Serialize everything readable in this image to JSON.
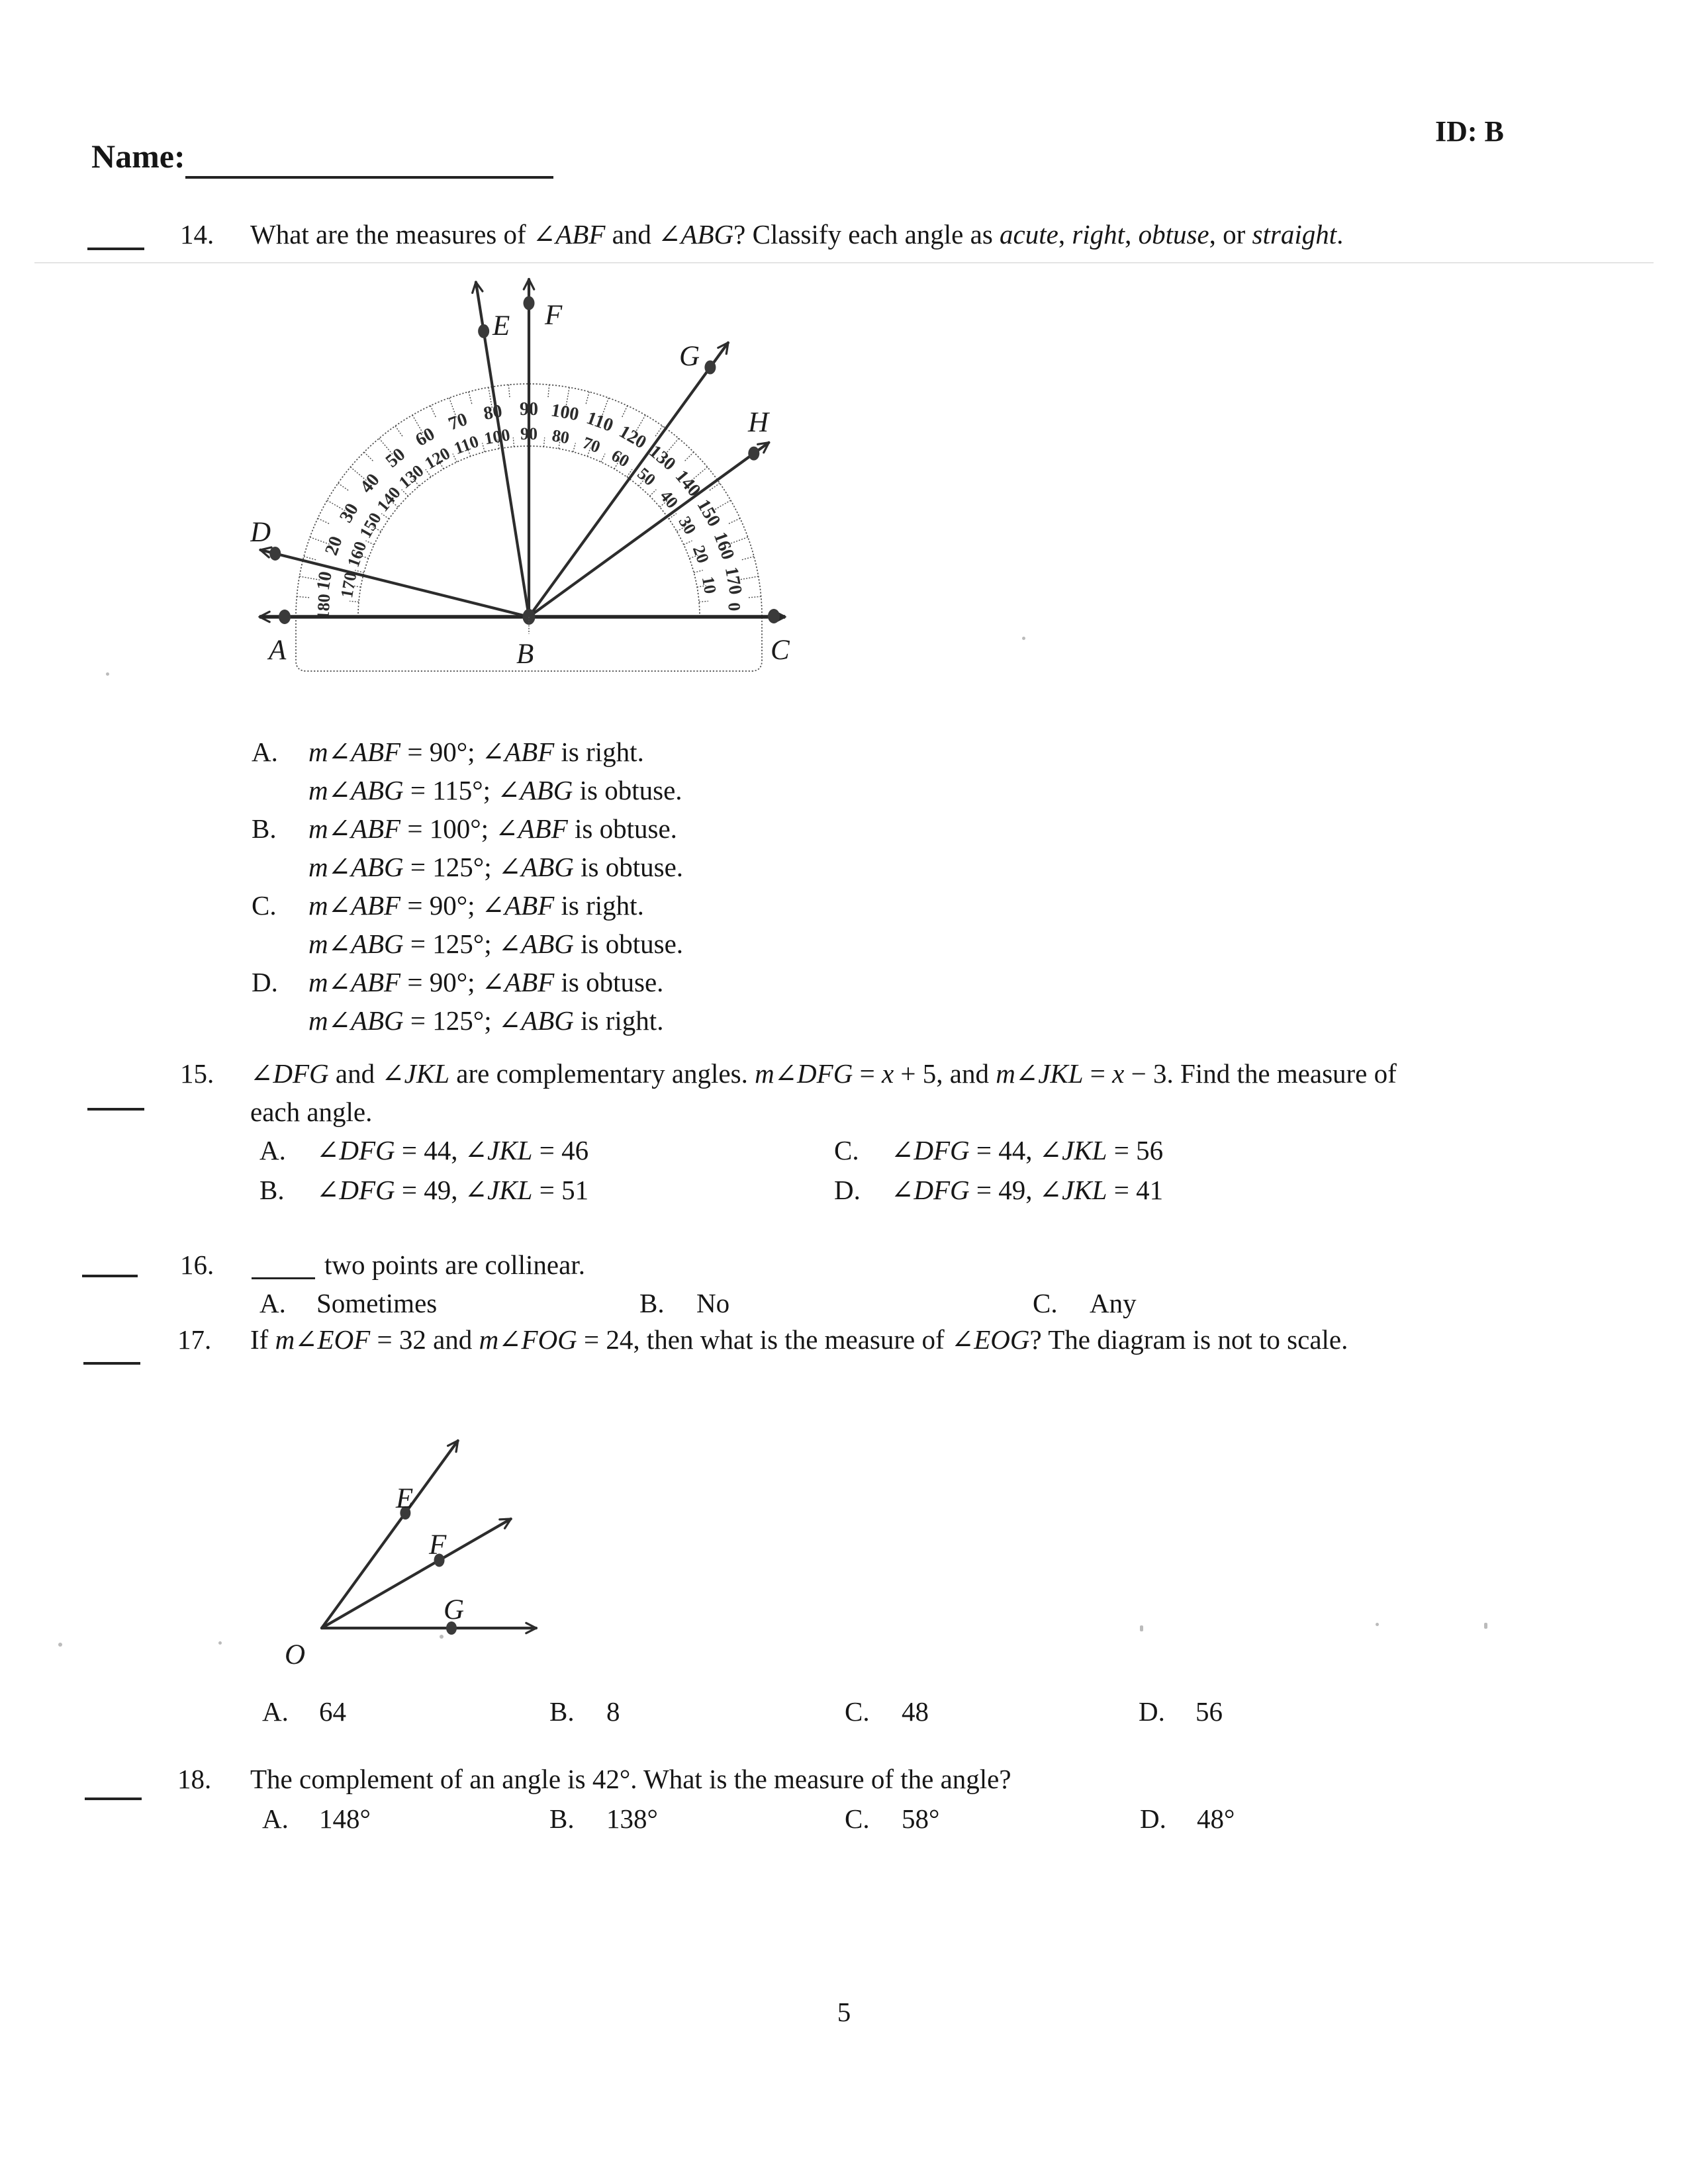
{
  "page": {
    "name_label": "Name:",
    "id_label": "ID: B",
    "page_number": "5"
  },
  "questions": [
    {
      "number": "14.",
      "text": [
        [
          "What are the measures of ",
          0
        ],
        [
          "∠ABF",
          1
        ],
        [
          " and ",
          0
        ],
        [
          "∠ABG",
          1
        ],
        [
          "? Classify each angle as ",
          0
        ],
        [
          "acute",
          1
        ],
        [
          ", ",
          0
        ],
        [
          "right",
          1
        ],
        [
          ", ",
          0
        ],
        [
          "obtuse",
          1
        ],
        [
          ", or ",
          0
        ],
        [
          "straight",
          1
        ],
        [
          ".",
          0
        ]
      ],
      "options": [
        {
          "letter": "A.",
          "lines": [
            [
              [
                "m∠ABF",
                1
              ],
              [
                " = 90°; ",
                0
              ],
              [
                "∠ABF",
                1
              ],
              [
                " is right.",
                0
              ]
            ],
            [
              [
                "m∠ABG",
                1
              ],
              [
                " = 115°; ",
                0
              ],
              [
                "∠ABG",
                1
              ],
              [
                " is obtuse.",
                0
              ]
            ]
          ]
        },
        {
          "letter": "B.",
          "lines": [
            [
              [
                "m∠ABF",
                1
              ],
              [
                " = 100°; ",
                0
              ],
              [
                "∠ABF",
                1
              ],
              [
                " is obtuse.",
                0
              ]
            ],
            [
              [
                "m∠ABG",
                1
              ],
              [
                " = 125°; ",
                0
              ],
              [
                "∠ABG",
                1
              ],
              [
                " is obtuse.",
                0
              ]
            ]
          ]
        },
        {
          "letter": "C.",
          "lines": [
            [
              [
                "m∠ABF",
                1
              ],
              [
                " = 90°; ",
                0
              ],
              [
                "∠ABF",
                1
              ],
              [
                " is right.",
                0
              ]
            ],
            [
              [
                "m∠ABG",
                1
              ],
              [
                " = 125°; ",
                0
              ],
              [
                "∠ABG",
                1
              ],
              [
                " is obtuse.",
                0
              ]
            ]
          ]
        },
        {
          "letter": "D.",
          "lines": [
            [
              [
                "m∠ABF",
                1
              ],
              [
                " = 90°; ",
                0
              ],
              [
                "∠ABF",
                1
              ],
              [
                " is obtuse.",
                0
              ]
            ],
            [
              [
                "m∠ABG",
                1
              ],
              [
                " = 125°; ",
                0
              ],
              [
                "∠ABG",
                1
              ],
              [
                " is right.",
                0
              ]
            ]
          ]
        }
      ]
    },
    {
      "number": "15.",
      "text_line1": [
        [
          "∠DFG",
          1
        ],
        [
          " and ",
          0
        ],
        [
          "∠JKL",
          1
        ],
        [
          " are complementary angles. ",
          0
        ],
        [
          "m∠DFG",
          1
        ],
        [
          " = ",
          0
        ],
        [
          "x",
          1
        ],
        [
          " + 5, and ",
          0
        ],
        [
          "m∠JKL",
          1
        ],
        [
          " = ",
          0
        ],
        [
          "x",
          1
        ],
        [
          " − 3. Find the measure of",
          0
        ]
      ],
      "text_line2": [
        [
          "each angle.",
          0
        ]
      ],
      "options": [
        {
          "letter": "A.",
          "line": [
            [
              "∠DFG",
              1
            ],
            [
              " = 44, ",
              0
            ],
            [
              "∠JKL",
              1
            ],
            [
              " = 46",
              0
            ]
          ]
        },
        {
          "letter": "B.",
          "line": [
            [
              "∠DFG",
              1
            ],
            [
              " = 49, ",
              0
            ],
            [
              "∠JKL",
              1
            ],
            [
              " = 51",
              0
            ]
          ]
        },
        {
          "letter": "C.",
          "line": [
            [
              "∠DFG",
              1
            ],
            [
              " = 44, ",
              0
            ],
            [
              "∠JKL",
              1
            ],
            [
              " = 56",
              0
            ]
          ]
        },
        {
          "letter": "D.",
          "line": [
            [
              "∠DFG",
              1
            ],
            [
              " = 49, ",
              0
            ],
            [
              "∠JKL",
              1
            ],
            [
              " = 41",
              0
            ]
          ]
        }
      ]
    },
    {
      "number": "16.",
      "text": [
        [
          "two points are collinear.",
          0
        ]
      ],
      "options": [
        {
          "letter": "A.",
          "line": [
            [
              "Sometimes",
              0
            ]
          ]
        },
        {
          "letter": "B.",
          "line": [
            [
              "No",
              0
            ]
          ]
        },
        {
          "letter": "C.",
          "line": [
            [
              "Any",
              0
            ]
          ]
        }
      ]
    },
    {
      "number": "17.",
      "text": [
        [
          "If ",
          0
        ],
        [
          "m∠EOF",
          1
        ],
        [
          " = 32 and ",
          0
        ],
        [
          "m∠FOG",
          1
        ],
        [
          " = 24, then what is the measure of ",
          0
        ],
        [
          "∠EOG",
          1
        ],
        [
          "? The diagram is not to scale.",
          0
        ]
      ],
      "options": [
        {
          "letter": "A.",
          "line": [
            [
              "64",
              0
            ]
          ]
        },
        {
          "letter": "B.",
          "line": [
            [
              "8",
              0
            ]
          ]
        },
        {
          "letter": "C.",
          "line": [
            [
              "48",
              0
            ]
          ]
        },
        {
          "letter": "D.",
          "line": [
            [
              "56",
              0
            ]
          ]
        }
      ]
    },
    {
      "number": "18.",
      "text": [
        [
          "The complement of an angle is 42°. What is the measure of the angle?",
          0
        ]
      ],
      "options": [
        {
          "letter": "A.",
          "line": [
            [
              "148°",
              0
            ]
          ]
        },
        {
          "letter": "B.",
          "line": [
            [
              "138°",
              0
            ]
          ]
        },
        {
          "letter": "C.",
          "line": [
            [
              "58°",
              0
            ]
          ]
        },
        {
          "letter": "D.",
          "line": [
            [
              "48°",
              0
            ]
          ]
        }
      ]
    }
  ],
  "figures": {
    "protractor": {
      "outer_scale": [
        "10",
        "20",
        "30",
        "40",
        "50",
        "60",
        "70",
        "80",
        "90",
        "100",
        "110",
        "120",
        "130",
        "140",
        "150",
        "160",
        "170"
      ],
      "inner_scale": [
        "170",
        "160",
        "150",
        "140",
        "130",
        "120",
        "110",
        "100",
        "90",
        "80",
        "70",
        "60",
        "50",
        "40",
        "30",
        "20",
        "10"
      ],
      "left_end_label": "180",
      "right_end_label": "0",
      "point_labels": {
        "A": "A",
        "B": "B",
        "C": "C",
        "D": "D",
        "E": "E",
        "F": "F",
        "G": "G",
        "H": "H"
      },
      "ray_angles_deg": {
        "D": 166,
        "E": 99,
        "F": 90,
        "G": 54,
        "H": 36
      }
    },
    "angle_figure": {
      "vertex_label": "O",
      "point_labels": {
        "E": "E",
        "F": "F",
        "G": "G"
      },
      "ray_angles_deg": {
        "E": 54,
        "F": 30,
        "G": 0
      }
    }
  }
}
